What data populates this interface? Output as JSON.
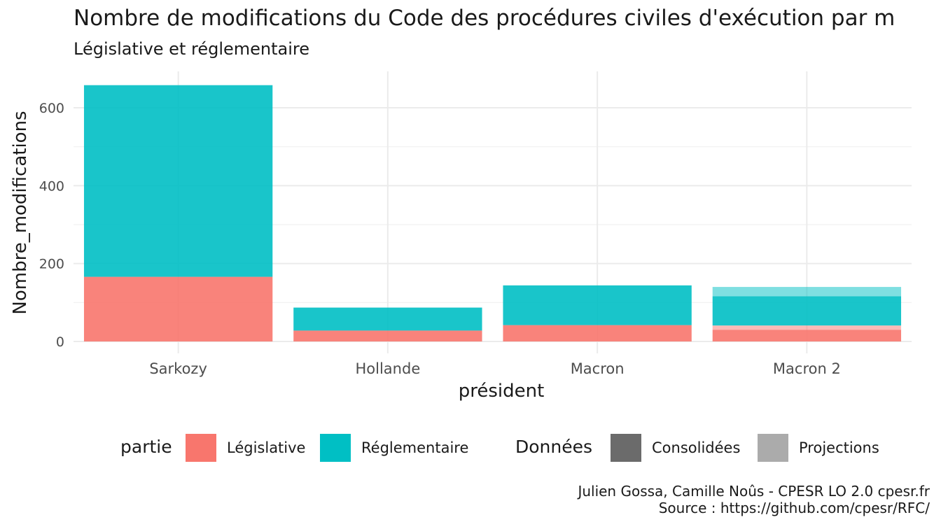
{
  "chart_data": {
    "type": "bar",
    "stacked": true,
    "title": "Nombre de modifications du Code des procédures civiles d'exécution par m",
    "subtitle": "Législative et réglementaire",
    "xlabel": "président",
    "ylabel": "Nombre_modifications",
    "categories": [
      "Sarkozy",
      "Hollande",
      "Macron",
      "Macron 2"
    ],
    "ylim": [
      0,
      690
    ],
    "yticks": [
      0,
      200,
      400,
      600
    ],
    "grid": true,
    "series": [
      {
        "name": "Législative",
        "data_type": "Consolidées",
        "color": "#F8766D",
        "values": [
          166,
          28,
          42,
          30
        ]
      },
      {
        "name": "Législative",
        "data_type": "Projections",
        "color": "#F8766D",
        "values": [
          0,
          0,
          0,
          11
        ]
      },
      {
        "name": "Réglementaire",
        "data_type": "Consolidées",
        "color": "#00BFC4",
        "values": [
          492,
          59,
          102,
          75
        ]
      },
      {
        "name": "Réglementaire",
        "data_type": "Projections",
        "color": "#00BFC4",
        "values": [
          0,
          0,
          0,
          24
        ]
      }
    ],
    "legend": {
      "position": "bottom",
      "groups": [
        {
          "title": "partie",
          "items": [
            {
              "label": "Législative",
              "color": "#F8766D"
            },
            {
              "label": "Réglementaire",
              "color": "#00BFC4"
            }
          ]
        },
        {
          "title": "Données",
          "items": [
            {
              "label": "Consolidées",
              "color": "#6b6b6b"
            },
            {
              "label": "Projections",
              "color": "#ababab"
            }
          ]
        }
      ]
    },
    "caption": [
      "Julien Gossa, Camille Noûs - CPESR LO 2.0 cpesr.fr",
      "Source : https://github.com/cpesr/RFC/"
    ]
  }
}
